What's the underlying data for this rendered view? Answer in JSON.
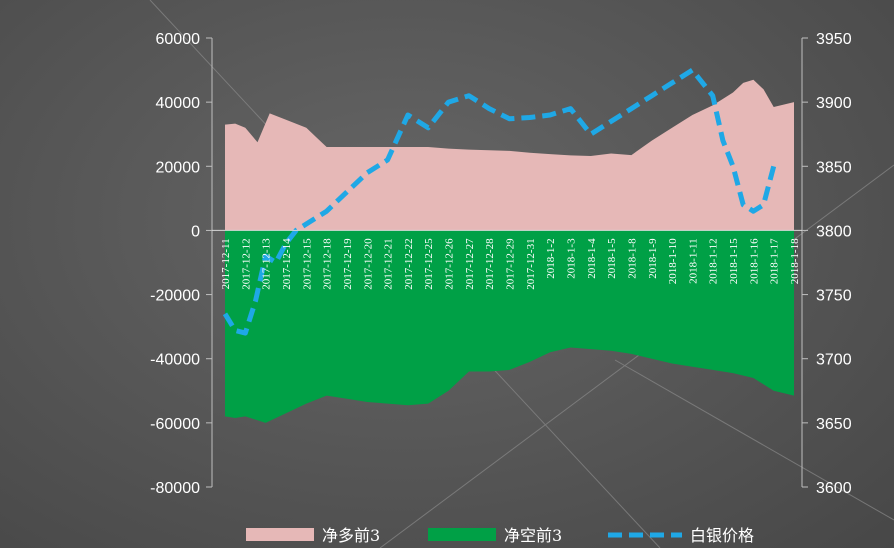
{
  "chart_data": {
    "type": "area",
    "categories": [
      "2017-12-11",
      "2017-12-12",
      "2017-12-13",
      "2017-12-14",
      "2017-12-15",
      "2017-12-18",
      "2017-12-19",
      "2017-12-20",
      "2017-12-21",
      "2017-12-22",
      "2017-12-25",
      "2017-12-26",
      "2017-12-27",
      "2017-12-28",
      "2017-12-29",
      "2017-12-31",
      "2018-1-2",
      "2018-1-3",
      "2018-1-4",
      "2018-1-5",
      "2018-1-8",
      "2018-1-9",
      "2018-1-10",
      "2018-1-11",
      "2018-1-12",
      "2018-1-15",
      "2018-1-16",
      "2018-1-17",
      "2018-1-18"
    ],
    "x_label_suffixes": [
      "11",
      "12",
      "13",
      "14",
      "15",
      "18",
      "19",
      "20",
      "21",
      "22",
      "25",
      "26",
      "27",
      "28",
      "29",
      "31",
      "2",
      "3",
      "4",
      "5",
      "8",
      "9",
      "10",
      "11",
      "12",
      "15",
      "16",
      "17",
      "18"
    ],
    "series": [
      {
        "name": "净多前3",
        "axis": "left",
        "style": "area",
        "color": "#e6b8b7",
        "x": [
          0,
          0.5,
          1,
          1.6,
          2.2,
          3,
          4,
          4.5,
          5,
          6,
          7,
          8,
          8.5,
          9,
          9.5,
          10,
          11,
          12,
          13,
          14,
          15,
          16,
          17,
          18,
          19,
          20,
          21,
          22,
          23,
          24,
          25,
          25.5,
          26,
          26.5,
          27,
          28
        ],
        "values": [
          33000,
          33300,
          32000,
          27500,
          36500,
          34500,
          32000,
          29000,
          26000,
          26000,
          26000,
          26000,
          26000,
          26000,
          26000,
          26000,
          25500,
          25200,
          25000,
          24800,
          24200,
          23800,
          23400,
          23200,
          24000,
          23500,
          28000,
          32000,
          36000,
          39000,
          43000,
          46000,
          47000,
          44000,
          38500,
          40000
        ]
      },
      {
        "name": "净空前3",
        "axis": "left",
        "style": "area",
        "color": "#00a046",
        "x": [
          0,
          0.5,
          1,
          2,
          3,
          4,
          5,
          6,
          7,
          8,
          9,
          10,
          11,
          12,
          13,
          14,
          15,
          16,
          17,
          18,
          19,
          20,
          21,
          22,
          23,
          24,
          25,
          26,
          27,
          28
        ],
        "values": [
          -58000,
          -58500,
          -58000,
          -60000,
          -57000,
          -54000,
          -51500,
          -52500,
          -53500,
          -54000,
          -54500,
          -54000,
          -50000,
          -44000,
          -44000,
          -43500,
          -41000,
          -38000,
          -36500,
          -37000,
          -37500,
          -38500,
          -40000,
          -41500,
          -42500,
          -43500,
          -44500,
          -46000,
          -50000,
          -51500
        ]
      },
      {
        "name": "白银价格",
        "axis": "right",
        "style": "dashed-line",
        "color": "#1fa8e6",
        "x": [
          0,
          0.5,
          1,
          1.5,
          2,
          2.5,
          3,
          3.5,
          4,
          5,
          6,
          7,
          8,
          9,
          10,
          11,
          12,
          13,
          14,
          15,
          16,
          17,
          18,
          19,
          20,
          21,
          22,
          23,
          24,
          24.5,
          25,
          25.5,
          26,
          26.5,
          27
        ],
        "values": [
          3735,
          3722,
          3720,
          3745,
          3780,
          3775,
          3790,
          3800,
          3805,
          3815,
          3830,
          3845,
          3855,
          3890,
          3880,
          3900,
          3905,
          3895,
          3887,
          3888,
          3890,
          3895,
          3875,
          3885,
          3895,
          3905,
          3915,
          3925,
          3905,
          3870,
          3850,
          3820,
          3815,
          3820,
          3850
        ]
      }
    ],
    "y_left": {
      "min": -80000,
      "max": 60000,
      "step": 20000,
      "ticks": [
        "-80000",
        "-60000",
        "-40000",
        "-20000",
        "0",
        "20000",
        "40000",
        "60000"
      ]
    },
    "y_right": {
      "min": 3600,
      "max": 3950,
      "step": 50,
      "ticks": [
        "3600",
        "3650",
        "3700",
        "3750",
        "3800",
        "3850",
        "3900",
        "3950"
      ]
    },
    "legend": {
      "placement": "bottom"
    },
    "grid": false
  }
}
